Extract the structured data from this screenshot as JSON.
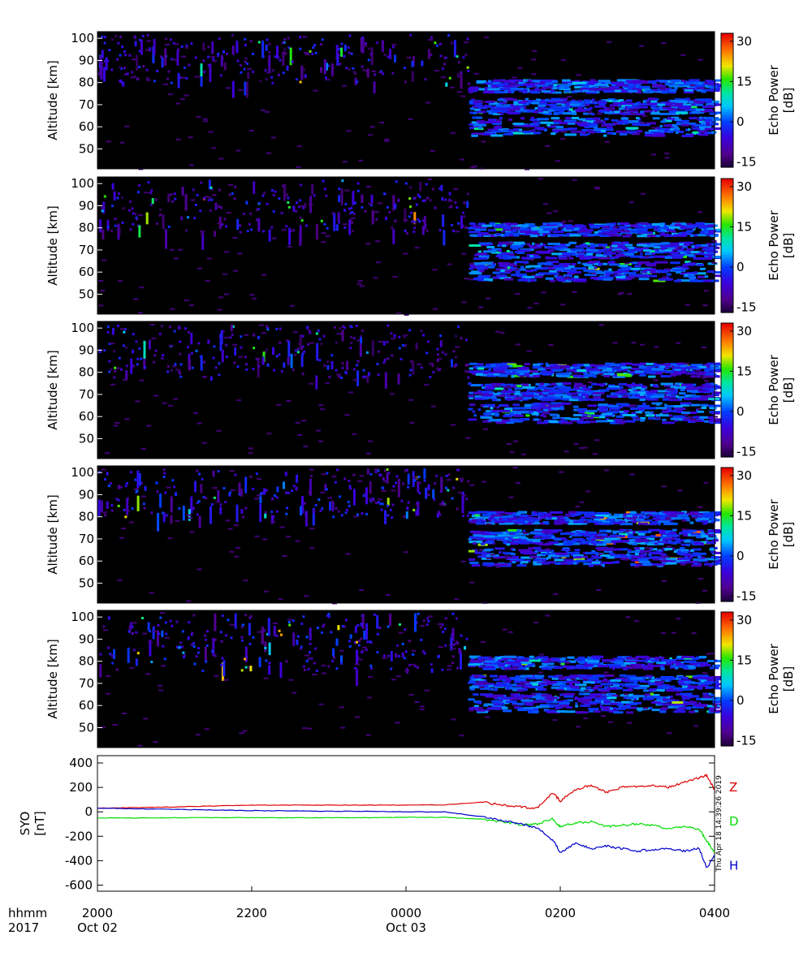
{
  "chart_data": [
    {
      "type": "heatmap",
      "panel": 1,
      "ylabel": "Altitude [km]",
      "yticks": [
        50,
        60,
        70,
        80,
        90,
        100
      ],
      "ylim": [
        41,
        103
      ],
      "xlim_hours": [
        20,
        28
      ],
      "colorbar": {
        "label": "Echo Power [dB]",
        "ticks": [
          30,
          15,
          0,
          -15
        ],
        "range": [
          -17,
          33
        ]
      },
      "regions": [
        {
          "description": "weak scattered echoes",
          "x_hours": [
            20,
            24.8
          ],
          "altitude_km": [
            80,
            102
          ],
          "typical_dB": -8,
          "peak_dB": 25
        },
        {
          "description": "strong layered echoes",
          "x_hours": [
            24.8,
            28
          ],
          "altitude_km": [
            55,
            83
          ],
          "typical_dB": -2,
          "peak_dB": 15
        }
      ]
    },
    {
      "type": "heatmap",
      "panel": 2,
      "ylabel": "Altitude [km]",
      "yticks": [
        50,
        60,
        70,
        80,
        90,
        100
      ],
      "ylim": [
        41,
        103
      ],
      "xlim_hours": [
        20,
        28
      ],
      "colorbar": {
        "label": "Echo Power [dB]",
        "ticks": [
          30,
          15,
          0,
          -15
        ],
        "range": [
          -17,
          33
        ]
      },
      "regions": [
        {
          "description": "weak scattered echoes",
          "x_hours": [
            20,
            24.8
          ],
          "altitude_km": [
            78,
            102
          ],
          "typical_dB": -8,
          "peak_dB": 30
        },
        {
          "description": "strong layered echoes",
          "x_hours": [
            24.8,
            28
          ],
          "altitude_km": [
            55,
            84
          ],
          "typical_dB": -2,
          "peak_dB": 20
        }
      ]
    },
    {
      "type": "heatmap",
      "panel": 3,
      "ylabel": "Altitude [km]",
      "yticks": [
        50,
        60,
        70,
        80,
        90,
        100
      ],
      "ylim": [
        41,
        103
      ],
      "xlim_hours": [
        20,
        28
      ],
      "colorbar": {
        "label": "Echo Power [dB]",
        "ticks": [
          30,
          15,
          0,
          -15
        ],
        "range": [
          -17,
          33
        ]
      },
      "regions": [
        {
          "description": "weak scattered echoes",
          "x_hours": [
            20,
            24.8
          ],
          "altitude_km": [
            78,
            102
          ],
          "typical_dB": -8,
          "peak_dB": 20
        },
        {
          "description": "strong layered echoes",
          "x_hours": [
            24.8,
            28
          ],
          "altitude_km": [
            56,
            86
          ],
          "typical_dB": -2,
          "peak_dB": 20
        }
      ]
    },
    {
      "type": "heatmap",
      "panel": 4,
      "ylabel": "Altitude [km]",
      "yticks": [
        50,
        60,
        70,
        80,
        90,
        100
      ],
      "ylim": [
        41,
        103
      ],
      "xlim_hours": [
        20,
        28
      ],
      "colorbar": {
        "label": "Echo Power [dB]",
        "ticks": [
          30,
          15,
          0,
          -15
        ],
        "range": [
          -17,
          33
        ]
      },
      "regions": [
        {
          "description": "weak scattered echoes",
          "x_hours": [
            20,
            24.8
          ],
          "altitude_km": [
            80,
            102
          ],
          "typical_dB": -6,
          "peak_dB": 22
        },
        {
          "description": "strong layered echoes",
          "x_hours": [
            24.8,
            28
          ],
          "altitude_km": [
            57,
            84
          ],
          "typical_dB": -2,
          "peak_dB": 30
        }
      ]
    },
    {
      "type": "heatmap",
      "panel": 5,
      "ylabel": "Altitude [km]",
      "yticks": [
        50,
        60,
        70,
        80,
        90,
        100
      ],
      "ylim": [
        41,
        103
      ],
      "xlim_hours": [
        20,
        28
      ],
      "colorbar": {
        "label": "Echo Power [dB]",
        "ticks": [
          30,
          15,
          0,
          -15
        ],
        "range": [
          -17,
          33
        ]
      },
      "regions": [
        {
          "description": "weak scattered echoes",
          "x_hours": [
            20,
            24.8
          ],
          "altitude_km": [
            76,
            102
          ],
          "typical_dB": -6,
          "peak_dB": 25
        },
        {
          "description": "strong layered echoes",
          "x_hours": [
            24.8,
            28
          ],
          "altitude_km": [
            56,
            84
          ],
          "typical_dB": -2,
          "peak_dB": 20
        }
      ]
    },
    {
      "type": "line",
      "panel": 6,
      "ylabel": "SYO [nT]",
      "yticks": [
        400,
        200,
        0,
        -200,
        -400,
        -600
      ],
      "ylim": [
        -650,
        460
      ],
      "x_hours": [
        20.0,
        20.5,
        21.0,
        21.5,
        22.0,
        22.5,
        23.0,
        23.5,
        24.0,
        24.5,
        25.0,
        25.3,
        25.5,
        25.7,
        25.9,
        26.0,
        26.2,
        26.4,
        26.6,
        26.8,
        27.0,
        27.2,
        27.4,
        27.6,
        27.8,
        27.9,
        28.0
      ],
      "series": [
        {
          "name": "Z",
          "color": "#dd0000",
          "values": [
            30,
            35,
            40,
            48,
            55,
            55,
            55,
            55,
            55,
            58,
            80,
            50,
            40,
            30,
            155,
            90,
            180,
            220,
            160,
            200,
            210,
            220,
            200,
            240,
            280,
            300,
            180
          ]
        },
        {
          "name": "D",
          "color": "#00dd00",
          "values": [
            -50,
            -50,
            -48,
            -48,
            -48,
            -48,
            -48,
            -48,
            -45,
            -45,
            -60,
            -85,
            -110,
            -100,
            -60,
            -120,
            -90,
            -80,
            -120,
            -110,
            -100,
            -110,
            -140,
            -120,
            -140,
            -240,
            -330
          ]
        },
        {
          "name": "H",
          "color": "#0000cc",
          "values": [
            30,
            25,
            20,
            15,
            10,
            8,
            5,
            5,
            0,
            0,
            -40,
            -80,
            -100,
            -130,
            -230,
            -330,
            -260,
            -300,
            -280,
            -300,
            -320,
            -310,
            -300,
            -320,
            -300,
            -460,
            -360
          ]
        }
      ]
    }
  ],
  "x_axis": {
    "row_labels": [
      "hhmm",
      "2017"
    ],
    "ticks": [
      {
        "hour": 20,
        "time": "2000",
        "date": "Oct 02"
      },
      {
        "hour": 22,
        "time": "2200",
        "date": ""
      },
      {
        "hour": 24,
        "time": "0000",
        "date": "Oct 03"
      },
      {
        "hour": 26,
        "time": "0200",
        "date": ""
      },
      {
        "hour": 28,
        "time": "0400",
        "date": ""
      }
    ]
  },
  "timestamp": "Thu Apr 18 14:39:26 2019"
}
